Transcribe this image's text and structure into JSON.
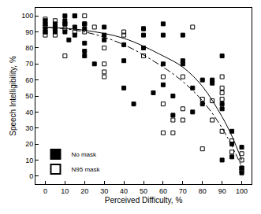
{
  "chart_data": {
    "type": "scatter",
    "x_label": "Perceived Difficulty, %",
    "y_label": "Speech Intelligibility, %",
    "xlim": [
      -5,
      105
    ],
    "ylim": [
      -5,
      105
    ],
    "xticks": [
      0,
      10,
      20,
      30,
      40,
      50,
      60,
      70,
      80,
      90,
      100
    ],
    "yticks": [
      0,
      10,
      20,
      30,
      40,
      50,
      60,
      70,
      80,
      90,
      100
    ],
    "grid": false,
    "legend": "lower left",
    "series": [
      {
        "name": "No mask",
        "type": "scatter",
        "color": "#000000",
        "marker": "square",
        "x": [
          0,
          0,
          0,
          0,
          5,
          5,
          5,
          5,
          10,
          10,
          10,
          10,
          12,
          15,
          15,
          15,
          20,
          20,
          20,
          20,
          20,
          25,
          30,
          30,
          30,
          40,
          40,
          40,
          45,
          50,
          50,
          50,
          55,
          60,
          60,
          60,
          60,
          65,
          65,
          70,
          70,
          70,
          75,
          75,
          80,
          80,
          85,
          85,
          90,
          90,
          90,
          90,
          95,
          95,
          95,
          100,
          100,
          100
        ],
        "values": [
          95,
          92,
          97,
          90,
          92,
          95,
          90,
          93,
          100,
          90,
          95,
          97,
          85,
          100,
          93,
          88,
          92,
          83,
          78,
          75,
          95,
          70,
          93,
          88,
          85,
          72,
          55,
          82,
          45,
          92,
          88,
          80,
          52,
          70,
          57,
          95,
          88,
          50,
          38,
          72,
          88,
          70,
          55,
          40,
          45,
          60,
          58,
          60,
          75,
          10,
          42,
          45,
          28,
          20,
          12,
          18,
          5,
          2
        ]
      },
      {
        "name": "N95 mask",
        "type": "scatter",
        "color": "#000000",
        "marker": "square-open",
        "x": [
          0,
          0,
          0,
          0,
          0,
          5,
          5,
          5,
          10,
          10,
          10,
          15,
          15,
          20,
          20,
          20,
          25,
          30,
          30,
          30,
          30,
          40,
          40,
          50,
          50,
          60,
          60,
          60,
          65,
          65,
          70,
          70,
          70,
          75,
          80,
          80,
          85,
          85,
          90,
          90,
          90,
          90,
          90,
          95,
          95,
          100,
          100,
          100,
          100
        ],
        "values": [
          98,
          95,
          90,
          93,
          88,
          97,
          92,
          88,
          75,
          95,
          92,
          100,
          90,
          100,
          95,
          90,
          93,
          65,
          62,
          70,
          80,
          88,
          90,
          75,
          92,
          45,
          27,
          62,
          35,
          27,
          62,
          42,
          35,
          93,
          48,
          17,
          35,
          47,
          62,
          55,
          52,
          48,
          28,
          15,
          22,
          5,
          3,
          14,
          10
        ]
      },
      {
        "type": "line",
        "color": "#000000",
        "line_style": "solid",
        "x": [
          0,
          20,
          40,
          60,
          70,
          80,
          90,
          95,
          100
        ],
        "values": [
          93,
          91,
          86,
          75,
          68,
          56,
          37,
          25,
          10
        ]
      },
      {
        "type": "line",
        "color": "#000000",
        "line_style": "dashdot",
        "x": [
          0,
          20,
          40,
          60,
          70,
          80,
          90,
          100
        ],
        "values": [
          93,
          90,
          82,
          68,
          59,
          47,
          30,
          6
        ]
      }
    ]
  }
}
